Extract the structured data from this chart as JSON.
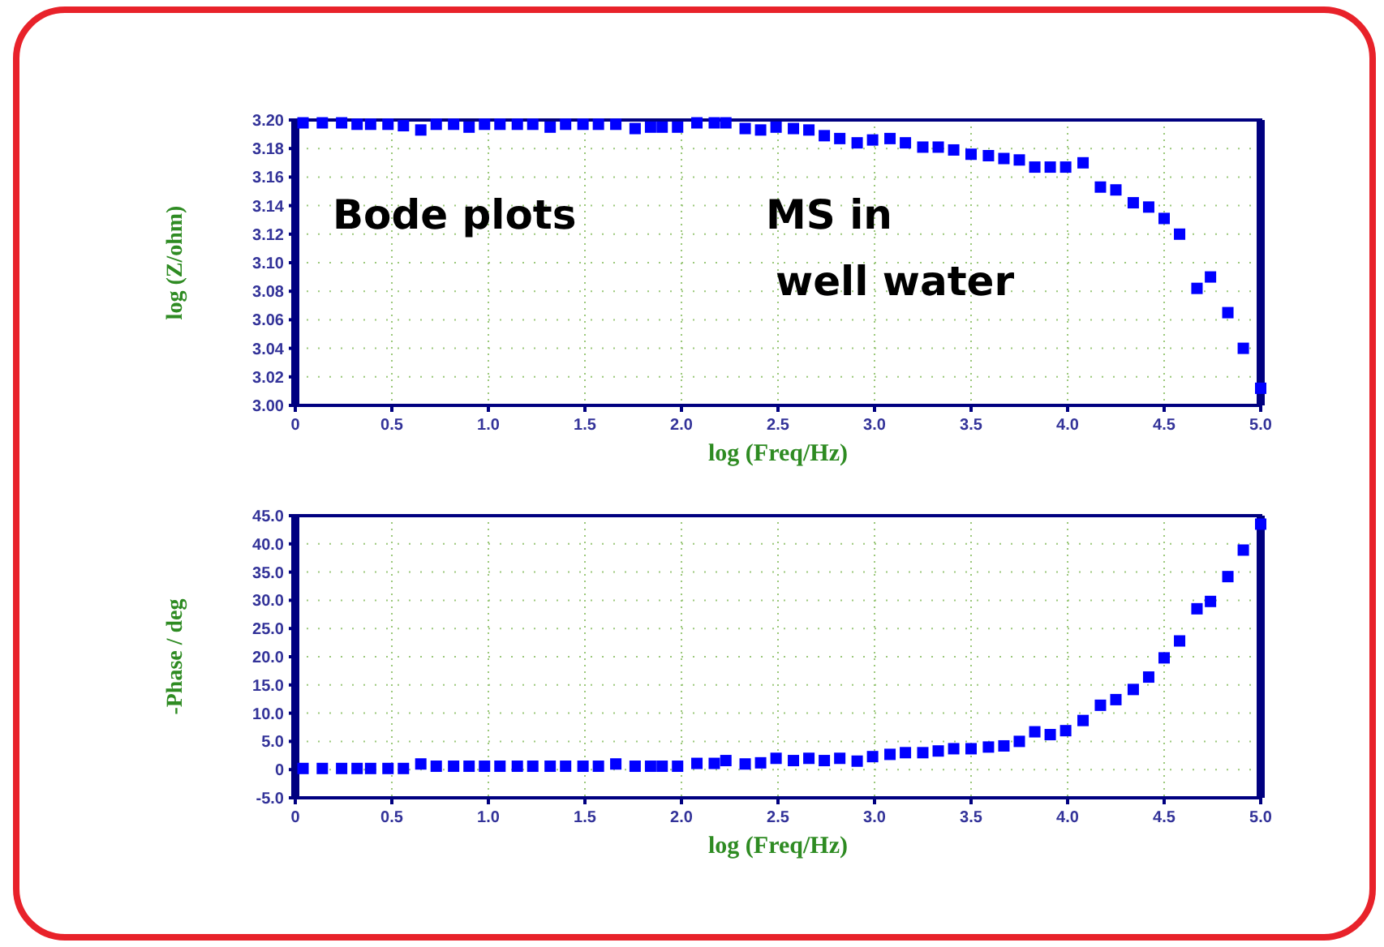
{
  "chart_data": [
    {
      "type": "scatter",
      "xlabel": "log (Freq/Hz)",
      "ylabel": "log (Z/ohm)",
      "annotations": [
        "Bode plots",
        "MS in\nwell water"
      ],
      "marker": "square",
      "grid": true,
      "x": [
        0.04,
        0.14,
        0.24,
        0.32,
        0.39,
        0.48,
        0.56,
        0.65,
        0.73,
        0.82,
        0.9,
        0.98,
        1.06,
        1.15,
        1.23,
        1.32,
        1.4,
        1.49,
        1.57,
        1.66,
        1.76,
        1.84,
        1.9,
        1.98,
        2.08,
        2.17,
        2.23,
        2.33,
        2.41,
        2.49,
        2.58,
        2.66,
        2.74,
        2.82,
        2.91,
        2.99,
        3.08,
        3.16,
        3.25,
        3.33,
        3.41,
        3.5,
        3.59,
        3.67,
        3.75,
        3.83,
        3.91,
        3.99,
        4.08,
        4.17,
        4.25,
        4.34,
        4.42,
        4.5,
        4.58,
        4.67,
        4.74,
        4.83,
        4.91,
        5.0
      ],
      "series": [
        {
          "color": "#0000ff",
          "values": [
            3.198,
            3.198,
            3.198,
            3.197,
            3.197,
            3.197,
            3.196,
            3.193,
            3.197,
            3.197,
            3.195,
            3.197,
            3.197,
            3.197,
            3.197,
            3.195,
            3.197,
            3.197,
            3.197,
            3.197,
            3.194,
            3.195,
            3.195,
            3.195,
            3.198,
            3.198,
            3.198,
            3.194,
            3.193,
            3.195,
            3.194,
            3.193,
            3.189,
            3.187,
            3.184,
            3.186,
            3.187,
            3.184,
            3.181,
            3.181,
            3.179,
            3.176,
            3.175,
            3.173,
            3.172,
            3.167,
            3.167,
            3.167,
            3.17,
            3.153,
            3.151,
            3.142,
            3.139,
            3.131,
            3.12,
            3.082,
            3.09,
            3.065,
            3.04,
            3.012
          ]
        }
      ],
      "xlim": [
        0,
        5
      ],
      "xticks": [
        {
          "value": 0,
          "label": "0"
        },
        {
          "value": 0.5,
          "label": "0.5"
        },
        {
          "value": 1,
          "label": "1.0"
        },
        {
          "value": 1.5,
          "label": "1.5"
        },
        {
          "value": 2,
          "label": "2.0"
        },
        {
          "value": 2.5,
          "label": "2.5"
        },
        {
          "value": 3,
          "label": "3.0"
        },
        {
          "value": 3.5,
          "label": "3.5"
        },
        {
          "value": 4,
          "label": "4.0"
        },
        {
          "value": 4.5,
          "label": "4.5"
        },
        {
          "value": 5,
          "label": "5.0"
        }
      ],
      "ylim": [
        3.0,
        3.2
      ],
      "yticks": [
        {
          "value": 3.0,
          "label": "3.00"
        },
        {
          "value": 3.02,
          "label": "3.02"
        },
        {
          "value": 3.04,
          "label": "3.04"
        },
        {
          "value": 3.06,
          "label": "3.06"
        },
        {
          "value": 3.08,
          "label": "3.08"
        },
        {
          "value": 3.1,
          "label": "3.10"
        },
        {
          "value": 3.12,
          "label": "3.12"
        },
        {
          "value": 3.14,
          "label": "3.14"
        },
        {
          "value": 3.16,
          "label": "3.16"
        },
        {
          "value": 3.18,
          "label": "3.18"
        },
        {
          "value": 3.2,
          "label": "3.20"
        }
      ]
    },
    {
      "type": "scatter",
      "xlabel": "log (Freq/Hz)",
      "ylabel": "-Phase / deg",
      "marker": "square",
      "grid": true,
      "x": [
        0.04,
        0.14,
        0.24,
        0.32,
        0.39,
        0.48,
        0.56,
        0.65,
        0.73,
        0.82,
        0.9,
        0.98,
        1.06,
        1.15,
        1.23,
        1.32,
        1.4,
        1.49,
        1.57,
        1.66,
        1.76,
        1.84,
        1.9,
        1.98,
        2.08,
        2.17,
        2.23,
        2.33,
        2.41,
        2.49,
        2.58,
        2.66,
        2.74,
        2.82,
        2.91,
        2.99,
        3.08,
        3.16,
        3.25,
        3.33,
        3.41,
        3.5,
        3.59,
        3.67,
        3.75,
        3.83,
        3.91,
        3.99,
        4.08,
        4.17,
        4.25,
        4.34,
        4.42,
        4.5,
        4.58,
        4.67,
        4.74,
        4.83,
        4.91,
        5.0
      ],
      "series": [
        {
          "color": "#0000ff",
          "values": [
            0.2,
            0.2,
            0.2,
            0.2,
            0.2,
            0.2,
            0.2,
            1.0,
            0.6,
            0.6,
            0.6,
            0.6,
            0.6,
            0.6,
            0.6,
            0.6,
            0.6,
            0.6,
            0.6,
            1.0,
            0.6,
            0.6,
            0.6,
            0.6,
            1.1,
            1.1,
            1.6,
            1.0,
            1.2,
            2.0,
            1.6,
            2.0,
            1.6,
            2.0,
            1.5,
            2.3,
            2.7,
            3.0,
            3.0,
            3.3,
            3.7,
            3.7,
            4.0,
            4.2,
            5.0,
            6.7,
            6.2,
            6.9,
            8.7,
            11.4,
            12.4,
            14.2,
            16.4,
            19.8,
            22.8,
            28.5,
            29.8,
            34.2,
            38.9,
            43.5
          ]
        }
      ],
      "xlim": [
        0,
        5
      ],
      "xticks": [
        {
          "value": 0,
          "label": "0"
        },
        {
          "value": 0.5,
          "label": "0.5"
        },
        {
          "value": 1,
          "label": "1.0"
        },
        {
          "value": 1.5,
          "label": "1.5"
        },
        {
          "value": 2,
          "label": "2.0"
        },
        {
          "value": 2.5,
          "label": "2.5"
        },
        {
          "value": 3,
          "label": "3.0"
        },
        {
          "value": 3.5,
          "label": "3.5"
        },
        {
          "value": 4,
          "label": "4.0"
        },
        {
          "value": 4.5,
          "label": "4.5"
        },
        {
          "value": 5,
          "label": "5.0"
        }
      ],
      "ylim": [
        -5,
        45
      ],
      "yticks": [
        {
          "value": -5,
          "label": "-5.0"
        },
        {
          "value": 0,
          "label": "0"
        },
        {
          "value": 5,
          "label": "5.0"
        },
        {
          "value": 10,
          "label": "10.0"
        },
        {
          "value": 15,
          "label": "15.0"
        },
        {
          "value": 20,
          "label": "20.0"
        },
        {
          "value": 25,
          "label": "25.0"
        },
        {
          "value": 30,
          "label": "30.0"
        },
        {
          "value": 35,
          "label": "35.0"
        },
        {
          "value": 40,
          "label": "40.0"
        },
        {
          "value": 45,
          "label": "45.0"
        }
      ]
    }
  ]
}
